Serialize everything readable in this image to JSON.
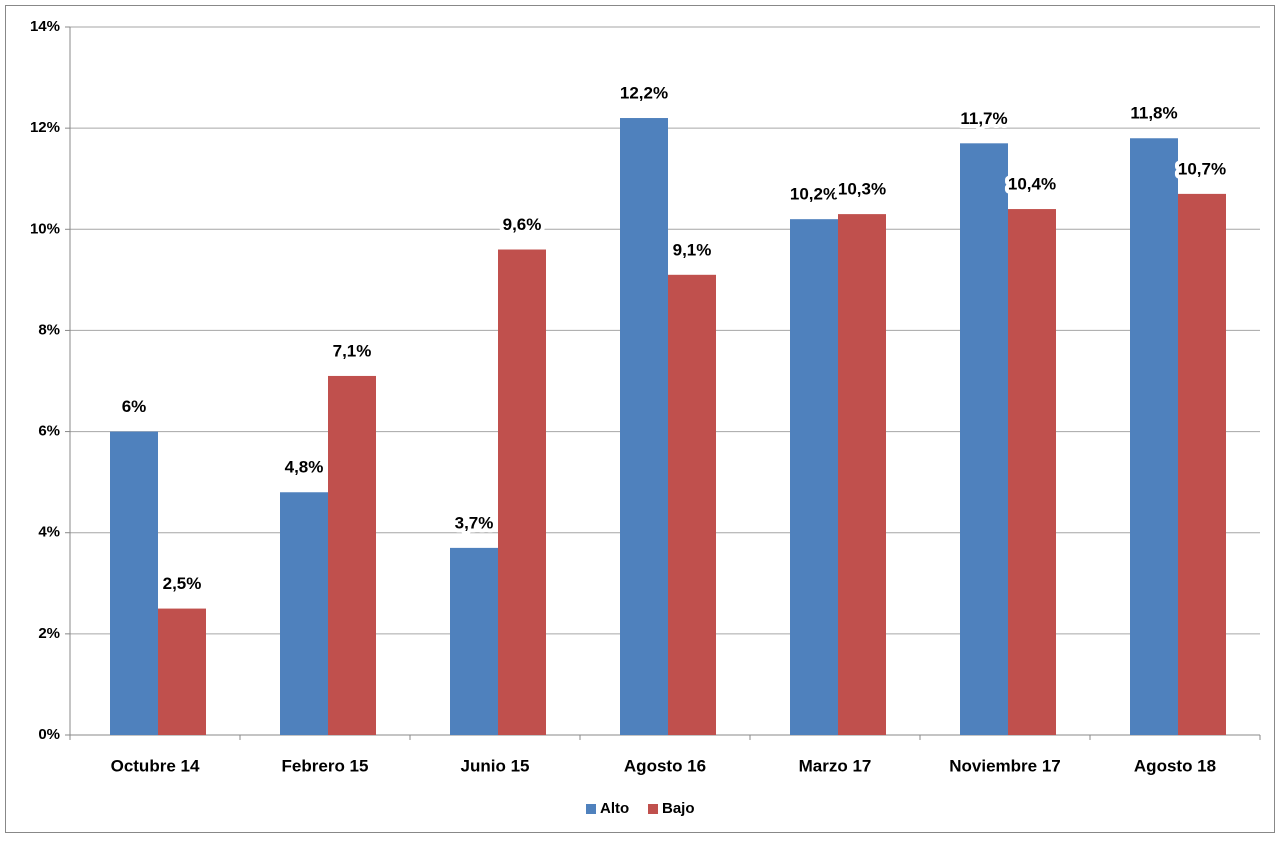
{
  "chart_data": {
    "type": "bar",
    "categories": [
      "Octubre 14",
      "Febrero 15",
      "Junio 15",
      "Agosto 16",
      "Marzo 17",
      "Noviembre 17",
      "Agosto 18"
    ],
    "series": [
      {
        "name": "Alto",
        "color": "#4f81bd",
        "values": [
          6,
          4.8,
          3.7,
          12.2,
          10.2,
          11.7,
          11.8
        ],
        "value_labels": [
          "6%",
          "4,8%",
          "3,7%",
          "12,2%",
          "10,2%",
          "11,7%",
          "11,8%"
        ]
      },
      {
        "name": "Bajo",
        "color": "#c0504d",
        "values": [
          2.5,
          7.1,
          9.6,
          9.1,
          10.3,
          10.4,
          10.7
        ],
        "value_labels": [
          "2,5%",
          "7,1%",
          "9,6%",
          "9,1%",
          "10,3%",
          "10,4%",
          "10,7%"
        ]
      }
    ],
    "ylim": [
      0,
      14
    ],
    "yticks": [
      {
        "value": 0,
        "label": "0%"
      },
      {
        "value": 2,
        "label": "2%"
      },
      {
        "value": 4,
        "label": "4%"
      },
      {
        "value": 6,
        "label": "6%"
      },
      {
        "value": 8,
        "label": "8%"
      },
      {
        "value": 10,
        "label": "10%"
      },
      {
        "value": 12,
        "label": "12%"
      },
      {
        "value": 14,
        "label": "14%"
      }
    ],
    "grid": true,
    "legend": "bottom"
  }
}
